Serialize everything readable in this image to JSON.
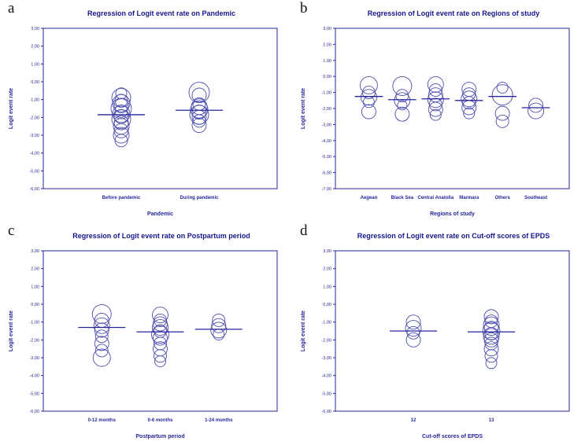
{
  "colors": {
    "axis": "#26269b",
    "bubble": "#4d4dae",
    "mean_line": "#26269b",
    "title": "#16168c"
  },
  "chart_data": [
    {
      "panel_label": "a",
      "type": "scatter",
      "title": "Regression of Logit event rate on Pandemic",
      "xlabel": "Pandemic",
      "ylabel": "Logit event rate",
      "ylim": [
        3,
        -6
      ],
      "ytick_labels": [
        "3,00",
        "2,00",
        "1,00",
        "0,00",
        "-1,00",
        "-2,00",
        "-3,00",
        "-4,00",
        "-5,00",
        "-6,00"
      ],
      "legend": "none",
      "grid": false,
      "series": [
        {
          "category": "Before pandemic",
          "mean": -1.85,
          "points": [
            {
              "y": -0.65,
              "r": 7
            },
            {
              "y": -0.9,
              "r": 12
            },
            {
              "y": -1.05,
              "r": 8
            },
            {
              "y": -1.2,
              "r": 11
            },
            {
              "y": -1.35,
              "r": 9
            },
            {
              "y": -1.5,
              "r": 13
            },
            {
              "y": -1.65,
              "r": 8
            },
            {
              "y": -1.8,
              "r": 11
            },
            {
              "y": -1.95,
              "r": 9
            },
            {
              "y": -2.1,
              "r": 12
            },
            {
              "y": -2.3,
              "r": 9
            },
            {
              "y": -2.5,
              "r": 10
            },
            {
              "y": -2.75,
              "r": 9
            },
            {
              "y": -3.0,
              "r": 10
            },
            {
              "y": -3.3,
              "r": 8
            }
          ]
        },
        {
          "category": "During pandemic",
          "mean": -1.6,
          "points": [
            {
              "y": -0.6,
              "r": 13
            },
            {
              "y": -0.75,
              "r": 9
            },
            {
              "y": -1.25,
              "r": 8
            },
            {
              "y": -1.4,
              "r": 10
            },
            {
              "y": -1.55,
              "r": 11
            },
            {
              "y": -1.7,
              "r": 9
            },
            {
              "y": -1.85,
              "r": 12
            },
            {
              "y": -2.0,
              "r": 9
            },
            {
              "y": -2.2,
              "r": 8
            },
            {
              "y": -2.45,
              "r": 9
            }
          ]
        }
      ]
    },
    {
      "panel_label": "b",
      "type": "scatter",
      "title": "Regression of Logit event rate on Regions of study",
      "xlabel": "Regions of study",
      "ylabel": "Logit event rate",
      "ylim": [
        3,
        -7
      ],
      "ytick_labels": [
        "3,00",
        "2,00",
        "1,00",
        "0,00",
        "-1,00",
        "-2,00",
        "-3,00",
        "-4,00",
        "-5,00",
        "-6,00",
        "-7,00"
      ],
      "legend": "none",
      "grid": false,
      "series": [
        {
          "category": "Aegean",
          "mean": -1.25,
          "points": [
            {
              "y": -0.55,
              "r": 11
            },
            {
              "y": -1.0,
              "r": 8
            },
            {
              "y": -1.3,
              "r": 10
            },
            {
              "y": -1.6,
              "r": 7
            },
            {
              "y": -2.2,
              "r": 9
            }
          ]
        },
        {
          "category": "Black Sea",
          "mean": -1.45,
          "points": [
            {
              "y": -0.6,
              "r": 12
            },
            {
              "y": -1.2,
              "r": 8
            },
            {
              "y": -1.5,
              "r": 10
            },
            {
              "y": -1.8,
              "r": 6
            },
            {
              "y": -2.35,
              "r": 9
            }
          ]
        },
        {
          "category": "Central Anatolia",
          "mean": -1.4,
          "points": [
            {
              "y": -0.5,
              "r": 10
            },
            {
              "y": -0.85,
              "r": 8
            },
            {
              "y": -1.15,
              "r": 9
            },
            {
              "y": -1.45,
              "r": 10
            },
            {
              "y": -1.75,
              "r": 8
            },
            {
              "y": -2.05,
              "r": 9
            },
            {
              "y": -2.4,
              "r": 7
            }
          ]
        },
        {
          "category": "Marmara",
          "mean": -1.5,
          "points": [
            {
              "y": -0.8,
              "r": 9
            },
            {
              "y": -1.1,
              "r": 8
            },
            {
              "y": -1.4,
              "r": 10
            },
            {
              "y": -1.65,
              "r": 8
            },
            {
              "y": -1.95,
              "r": 9
            },
            {
              "y": -2.3,
              "r": 7
            }
          ]
        },
        {
          "category": "Others",
          "mean": -1.25,
          "points": [
            {
              "y": -0.7,
              "r": 7
            },
            {
              "y": -1.15,
              "r": 13
            },
            {
              "y": -2.3,
              "r": 9
            },
            {
              "y": -2.8,
              "r": 8
            }
          ]
        },
        {
          "category": "Southeast",
          "mean": -1.95,
          "points": [
            {
              "y": -1.8,
              "r": 9
            },
            {
              "y": -2.15,
              "r": 10
            }
          ]
        }
      ]
    },
    {
      "panel_label": "c",
      "type": "scatter",
      "title": "Regression of Logit event rate on Postpartum period",
      "xlabel": "Postpartum period",
      "ylabel": "Logit event rate",
      "ylim": [
        3,
        -6
      ],
      "ytick_labels": [
        "3,00",
        "2,00",
        "1,00",
        "0,00",
        "-1,00",
        "-2,00",
        "-3,00",
        "-4,00",
        "-5,00",
        "-6,00"
      ],
      "legend": "none",
      "grid": false,
      "series": [
        {
          "category": "0-12 months",
          "mean": -1.3,
          "points": [
            {
              "y": -0.55,
              "r": 12
            },
            {
              "y": -0.9,
              "r": 9
            },
            {
              "y": -1.2,
              "r": 10
            },
            {
              "y": -1.45,
              "r": 9
            },
            {
              "y": -1.8,
              "r": 8
            },
            {
              "y": -2.2,
              "r": 9
            },
            {
              "y": -2.6,
              "r": 8
            },
            {
              "y": -3.0,
              "r": 11
            }
          ]
        },
        {
          "category": "0-6 months",
          "mean": -1.55,
          "points": [
            {
              "y": -0.6,
              "r": 10
            },
            {
              "y": -0.9,
              "r": 8
            },
            {
              "y": -1.1,
              "r": 9
            },
            {
              "y": -1.3,
              "r": 10
            },
            {
              "y": -1.5,
              "r": 8
            },
            {
              "y": -1.7,
              "r": 11
            },
            {
              "y": -1.9,
              "r": 9
            },
            {
              "y": -2.2,
              "r": 8
            },
            {
              "y": -2.5,
              "r": 9
            },
            {
              "y": -2.9,
              "r": 8
            },
            {
              "y": -3.2,
              "r": 7
            }
          ]
        },
        {
          "category": "1-24 months",
          "mean": -1.4,
          "points": [
            {
              "y": -0.9,
              "r": 8
            },
            {
              "y": -1.2,
              "r": 9
            },
            {
              "y": -1.45,
              "r": 10
            },
            {
              "y": -1.7,
              "r": 7
            }
          ]
        }
      ]
    },
    {
      "panel_label": "d",
      "type": "scatter",
      "title": "Regression of Logit event rate on Cut-off scores of EPDS",
      "xlabel": "Cut-off scores of EPDS",
      "ylabel": "Logit event rate",
      "ylim": [
        3,
        -6
      ],
      "ytick_labels": [
        "3,00",
        "2,00",
        "1,00",
        "0,00",
        "-1,00",
        "-2,00",
        "-3,00",
        "-4,00",
        "-5,00",
        "-6,00"
      ],
      "legend": "none",
      "grid": false,
      "series": [
        {
          "category": "12",
          "mean": -1.5,
          "points": [
            {
              "y": -1.0,
              "r": 9
            },
            {
              "y": -1.35,
              "r": 10
            },
            {
              "y": -1.6,
              "r": 8
            },
            {
              "y": -2.0,
              "r": 9
            }
          ]
        },
        {
          "category": "13",
          "mean": -1.55,
          "points": [
            {
              "y": -0.7,
              "r": 9
            },
            {
              "y": -0.95,
              "r": 8
            },
            {
              "y": -1.15,
              "r": 10
            },
            {
              "y": -1.35,
              "r": 9
            },
            {
              "y": -1.5,
              "r": 11
            },
            {
              "y": -1.65,
              "r": 8
            },
            {
              "y": -1.8,
              "r": 10
            },
            {
              "y": -2.0,
              "r": 9
            },
            {
              "y": -2.2,
              "r": 8
            },
            {
              "y": -2.5,
              "r": 9
            },
            {
              "y": -2.9,
              "r": 8
            },
            {
              "y": -3.3,
              "r": 7
            }
          ]
        }
      ]
    }
  ]
}
